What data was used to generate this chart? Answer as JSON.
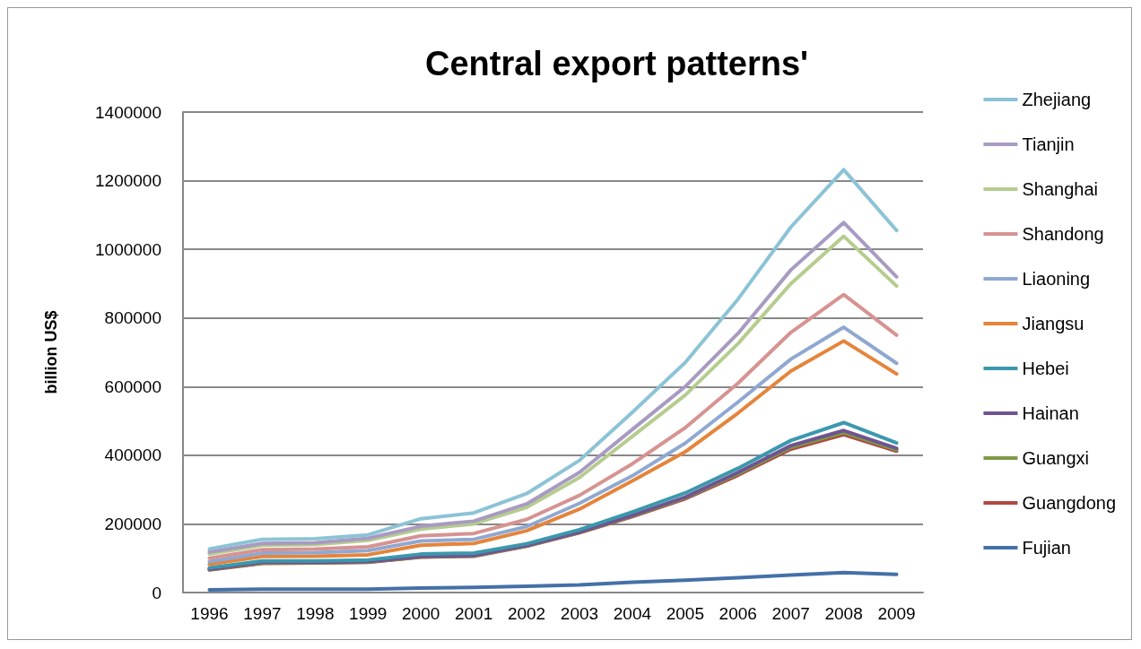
{
  "chart_data": {
    "type": "line",
    "title": "Central export patterns'",
    "ylabel": "billion US$",
    "categories": [
      "1996",
      "1997",
      "1998",
      "1999",
      "2000",
      "2001",
      "2002",
      "2003",
      "2004",
      "2005",
      "2006",
      "2007",
      "2008",
      "2009"
    ],
    "ylim": [
      0,
      1400000
    ],
    "yticks": [
      0,
      200000,
      400000,
      600000,
      800000,
      1000000,
      1200000,
      1400000
    ],
    "grid": "y",
    "legend": "right",
    "marker": "none",
    "line_style": "solid",
    "series": [
      {
        "name": "Zhejiang",
        "color": "#8cc3d6",
        "values": [
          127000,
          155000,
          157000,
          168000,
          215000,
          232000,
          288000,
          385000,
          525000,
          670000,
          855000,
          1065000,
          1232000,
          1055000
        ]
      },
      {
        "name": "Tianjin",
        "color": "#a89bc2",
        "values": [
          118000,
          143000,
          145000,
          158000,
          193000,
          208000,
          258000,
          350000,
          475000,
          600000,
          755000,
          940000,
          1078000,
          920000
        ]
      },
      {
        "name": "Shanghai",
        "color": "#b5cc8e",
        "values": [
          112000,
          138000,
          140000,
          152000,
          185000,
          200000,
          248000,
          335000,
          455000,
          575000,
          725000,
          900000,
          1038000,
          893000
        ]
      },
      {
        "name": "Shandong",
        "color": "#d69391",
        "values": [
          100000,
          125000,
          127000,
          133000,
          165000,
          172000,
          213000,
          283000,
          375000,
          480000,
          610000,
          758000,
          868000,
          750000
        ]
      },
      {
        "name": "Liaoning",
        "color": "#8fa8d2",
        "values": [
          90000,
          115000,
          116000,
          122000,
          150000,
          155000,
          192000,
          260000,
          340000,
          435000,
          555000,
          680000,
          773000,
          668000
        ]
      },
      {
        "name": "Jiangsu",
        "color": "#e5843a",
        "values": [
          82000,
          105000,
          106000,
          110000,
          138000,
          143000,
          180000,
          243000,
          325000,
          410000,
          523000,
          645000,
          733000,
          637000
        ]
      },
      {
        "name": "Hebei",
        "color": "#3b98ad",
        "values": [
          72000,
          92000,
          92000,
          95000,
          112000,
          115000,
          142000,
          183000,
          235000,
          290000,
          362000,
          443000,
          495000,
          436000
        ]
      },
      {
        "name": "Hainan",
        "color": "#6e5491",
        "values": [
          68000,
          88000,
          88000,
          90000,
          105000,
          108000,
          137000,
          176000,
          225000,
          278000,
          350000,
          428000,
          472000,
          420000
        ]
      },
      {
        "name": "Guangxi",
        "color": "#7d9a46",
        "values": [
          67000,
          86000,
          87000,
          89000,
          104000,
          107000,
          136000,
          175000,
          223000,
          276000,
          346000,
          423000,
          466000,
          416000
        ]
      },
      {
        "name": "Guangdong",
        "color": "#b0463f",
        "values": [
          66000,
          85000,
          86000,
          88000,
          103000,
          106000,
          135000,
          174000,
          221000,
          273000,
          342000,
          418000,
          460000,
          412000
        ]
      },
      {
        "name": "Fujian",
        "color": "#4470a8",
        "values": [
          8000,
          10000,
          10000,
          10000,
          13000,
          15000,
          18000,
          22000,
          30000,
          36000,
          43000,
          51000,
          58000,
          53000
        ]
      }
    ]
  }
}
